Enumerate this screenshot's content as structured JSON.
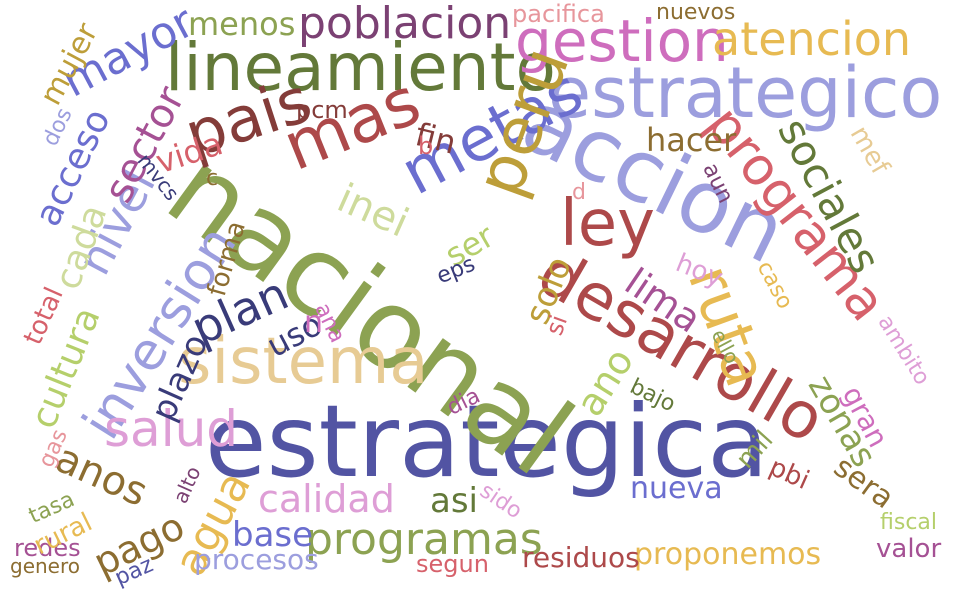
{
  "word_cloud": {
    "words": [
      {
        "text": "estrategica",
        "color": "#5254a3"
      },
      {
        "text": "nacional",
        "color": "#8ca252"
      },
      {
        "text": "accion",
        "color": "#9c9ede"
      },
      {
        "text": "estrategico",
        "color": "#9c9ede"
      },
      {
        "text": "lineamiento",
        "color": "#637939"
      },
      {
        "text": "desarrollo",
        "color": "#ad494a"
      },
      {
        "text": "programa",
        "color": "#d6616b"
      },
      {
        "text": "gestion",
        "color": "#ce6dbd"
      },
      {
        "text": "sistema",
        "color": "#e7cb94"
      },
      {
        "text": "metas",
        "color": "#6b6ecf"
      },
      {
        "text": "mas",
        "color": "#ad494a"
      },
      {
        "text": "pais",
        "color": "#843c39"
      },
      {
        "text": "peru",
        "color": "#bd9e39"
      },
      {
        "text": "ley",
        "color": "#ad494a"
      },
      {
        "text": "ruta",
        "color": "#e7ba52"
      },
      {
        "text": "atencion",
        "color": "#e7ba52"
      },
      {
        "text": "poblacion",
        "color": "#7b4173"
      },
      {
        "text": "sociales",
        "color": "#637939"
      },
      {
        "text": "inversion",
        "color": "#9c9ede"
      },
      {
        "text": "nivel",
        "color": "#9c9ede"
      },
      {
        "text": "plan",
        "color": "#393b79"
      },
      {
        "text": "salud",
        "color": "#de9ed6"
      },
      {
        "text": "programas",
        "color": "#8ca252"
      },
      {
        "text": "mayor",
        "color": "#6b6ecf"
      },
      {
        "text": "sector",
        "color": "#a55194"
      },
      {
        "text": "lima",
        "color": "#a55194"
      },
      {
        "text": "zonas",
        "color": "#8ca252"
      },
      {
        "text": "agua",
        "color": "#e7ba52"
      },
      {
        "text": "anos",
        "color": "#8c6d31"
      },
      {
        "text": "pago",
        "color": "#8c6d31"
      },
      {
        "text": "acceso",
        "color": "#6b6ecf"
      },
      {
        "text": "cultura",
        "color": "#b5cf6b"
      },
      {
        "text": "calidad",
        "color": "#de9ed6"
      },
      {
        "text": "hacer",
        "color": "#8c6d31"
      },
      {
        "text": "menos",
        "color": "#8ca252"
      },
      {
        "text": "base",
        "color": "#6b6ecf"
      },
      {
        "text": "nueva",
        "color": "#6b6ecf"
      },
      {
        "text": "asi",
        "color": "#637939"
      },
      {
        "text": "ano",
        "color": "#b5cf6b"
      },
      {
        "text": "solo",
        "color": "#bd9e39"
      },
      {
        "text": "sera",
        "color": "#8c6d31"
      },
      {
        "text": "gran",
        "color": "#ce6dbd"
      },
      {
        "text": "proponemos",
        "color": "#e7ba52"
      },
      {
        "text": "residuos",
        "color": "#ad494a"
      },
      {
        "text": "plazo",
        "color": "#393b79"
      },
      {
        "text": "inei",
        "color": "#cedb9c"
      },
      {
        "text": "cada",
        "color": "#cedb9c"
      },
      {
        "text": "mujer",
        "color": "#bd9e39"
      },
      {
        "text": "ser",
        "color": "#b5cf6b"
      },
      {
        "text": "fin",
        "color": "#843c39"
      },
      {
        "text": "vida",
        "color": "#d6616b"
      },
      {
        "text": "procesos",
        "color": "#9c9ede"
      },
      {
        "text": "nuevos",
        "color": "#8c6d31"
      },
      {
        "text": "pacifica",
        "color": "#e7969c"
      },
      {
        "text": "valor",
        "color": "#a55194"
      },
      {
        "text": "redes",
        "color": "#a55194"
      },
      {
        "text": "rural",
        "color": "#e7ba52"
      },
      {
        "text": "mef",
        "color": "#e7cb94"
      },
      {
        "text": "hoy",
        "color": "#de9ed6"
      },
      {
        "text": "pbi",
        "color": "#ad494a"
      },
      {
        "text": "uso",
        "color": "#393b79"
      },
      {
        "text": "segun",
        "color": "#d6616b"
      },
      {
        "text": "total",
        "color": "#d6616b"
      },
      {
        "text": "forma",
        "color": "#8c6d31"
      },
      {
        "text": "sido",
        "color": "#de9ed6"
      },
      {
        "text": "tasa",
        "color": "#8ca252"
      },
      {
        "text": "caso",
        "color": "#e7ba52"
      },
      {
        "text": "fiscal",
        "color": "#b5cf6b"
      },
      {
        "text": "genero",
        "color": "#8c6d31"
      },
      {
        "text": "paz",
        "color": "#5254a3"
      },
      {
        "text": "pcm",
        "color": "#843c39"
      },
      {
        "text": "ambito",
        "color": "#de9ed6"
      },
      {
        "text": "bajo",
        "color": "#637939"
      },
      {
        "text": "eps",
        "color": "#393b79"
      },
      {
        "text": "aun",
        "color": "#7b4173"
      },
      {
        "text": "dos",
        "color": "#9c9ede"
      },
      {
        "text": "mvcs",
        "color": "#393b79"
      },
      {
        "text": "dia",
        "color": "#a55194"
      },
      {
        "text": "ana",
        "color": "#ce6dbd"
      },
      {
        "text": "alto",
        "color": "#7b4173"
      },
      {
        "text": "gas",
        "color": "#e7969c"
      },
      {
        "text": "ello",
        "color": "#8ca252"
      },
      {
        "text": "mil",
        "color": "#8ca252"
      },
      {
        "text": "si",
        "color": "#d6616b"
      },
      {
        "text": "d",
        "color": "#e7969c"
      },
      {
        "text": "b",
        "color": "#d6616b"
      },
      {
        "text": "c",
        "color": "#8c6d31"
      },
      {
        "text": "n",
        "color": "#ce6dbd"
      }
    ]
  }
}
